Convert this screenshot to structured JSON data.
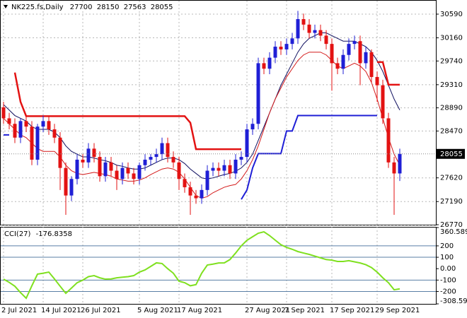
{
  "chart_data": [
    {
      "type": "candlestick",
      "title": "NK225.fs,Daily",
      "categories": [
        "2 Jul 2021",
        null,
        null,
        null,
        null,
        null,
        null,
        "14 Jul 2021",
        null,
        null,
        null,
        null,
        null,
        null,
        "26 Jul 2021",
        null,
        null,
        null,
        null,
        null,
        null,
        null,
        null,
        null,
        "5 Aug 2021",
        null,
        null,
        null,
        null,
        null,
        null,
        "17 Aug 2021",
        null,
        null,
        null,
        null,
        null,
        null,
        null,
        null,
        null,
        null,
        null,
        "27 Aug 2021",
        null,
        null,
        null,
        null,
        null,
        null,
        "7 Sep 2021",
        null,
        null,
        null,
        null,
        null,
        null,
        null,
        "17 Sep 2021",
        null,
        null,
        null,
        null,
        null,
        null,
        null,
        "29 Sep 2021",
        null,
        null,
        null,
        null
      ],
      "open": [
        28900,
        28700,
        28600,
        28350,
        28650,
        28550,
        27950,
        28550,
        28650,
        28500,
        28350,
        27800,
        27300,
        27600,
        27950,
        27900,
        28150,
        28000,
        27650,
        27900,
        27750,
        27600,
        27800,
        27700,
        27600,
        27850,
        27950,
        28000,
        28050,
        28250,
        28000,
        27900,
        27600,
        27450,
        27300,
        27250,
        27400,
        27750,
        27800,
        27750,
        27850,
        27700,
        27950,
        28000,
        28500,
        28600,
        29700,
        29600,
        29800,
        30000,
        29950,
        30050,
        30150,
        30500,
        30400,
        30250,
        30300,
        30200,
        30050,
        29700,
        29600,
        29850,
        30050,
        30100,
        29700,
        29900,
        29450,
        29300,
        28700,
        27900,
        27700
      ],
      "high": [
        29000,
        28800,
        28700,
        28700,
        28750,
        28650,
        28600,
        28750,
        28750,
        28600,
        28450,
        27900,
        27650,
        28050,
        28050,
        28250,
        28250,
        28100,
        28000,
        28000,
        27850,
        27900,
        27900,
        27800,
        27900,
        28050,
        28050,
        28150,
        28350,
        28350,
        28100,
        28000,
        27700,
        27550,
        27400,
        27500,
        27850,
        27900,
        27900,
        27950,
        27950,
        28050,
        28100,
        28600,
        28700,
        29800,
        29800,
        29900,
        30100,
        30100,
        30150,
        30250,
        30650,
        30600,
        30500,
        30400,
        30400,
        30300,
        30150,
        29800,
        29950,
        30150,
        30200,
        30200,
        30000,
        29950,
        29550,
        29400,
        28800,
        28000,
        28150
      ],
      "low": [
        28600,
        28500,
        28250,
        28250,
        28450,
        27850,
        27850,
        28450,
        28400,
        28250,
        27400,
        26950,
        27200,
        27500,
        27800,
        27800,
        27900,
        27550,
        27550,
        27650,
        27400,
        27500,
        27600,
        27500,
        27500,
        27750,
        27850,
        27900,
        27950,
        27900,
        27800,
        27400,
        27350,
        26950,
        27150,
        27150,
        27300,
        27650,
        27650,
        27650,
        27600,
        27600,
        27850,
        27900,
        28400,
        28500,
        29500,
        29500,
        29700,
        29850,
        29850,
        29950,
        30050,
        30300,
        30150,
        30150,
        30100,
        29950,
        29200,
        29500,
        29500,
        29750,
        29950,
        29300,
        29600,
        29350,
        29000,
        28600,
        27800,
        26950,
        27563
      ],
      "close": [
        28700,
        28600,
        28350,
        28650,
        28550,
        27950,
        28550,
        28650,
        28500,
        28350,
        27800,
        27300,
        27600,
        27950,
        27900,
        28150,
        28000,
        27650,
        27900,
        27750,
        27600,
        27800,
        27700,
        27600,
        27850,
        27950,
        28000,
        28050,
        28250,
        28000,
        27900,
        27600,
        27450,
        27300,
        27250,
        27400,
        27750,
        27800,
        27750,
        27850,
        27700,
        27950,
        28000,
        28500,
        28600,
        29700,
        29600,
        29800,
        30000,
        29950,
        30050,
        30150,
        30500,
        30400,
        30250,
        30300,
        30200,
        30050,
        29700,
        29600,
        29850,
        30050,
        30100,
        29700,
        29900,
        29450,
        29300,
        28700,
        27900,
        27700,
        28055
      ],
      "up_color": "#1f1fd6",
      "down_color": "#e31212",
      "overlays": [
        {
          "color": "#101060",
          "width": 1,
          "values": [
            28950,
            28850,
            28750,
            28700,
            28650,
            28550,
            28500,
            28500,
            28500,
            28450,
            28350,
            28200,
            28100,
            28050,
            28000,
            28000,
            27980,
            27950,
            27930,
            27900,
            27850,
            27830,
            27800,
            27780,
            27780,
            27800,
            27850,
            27900,
            27950,
            27980,
            27980,
            27950,
            27880,
            27780,
            27700,
            27620,
            27600,
            27620,
            27650,
            27680,
            27700,
            27740,
            27800,
            27900,
            28050,
            28300,
            28550,
            28800,
            29050,
            29300,
            29500,
            29700,
            29900,
            30050,
            30150,
            30200,
            30250,
            30250,
            30200,
            30150,
            30100,
            30100,
            30100,
            30050,
            30000,
            29900,
            29750,
            29550,
            29300,
            29050,
            28850
          ]
        },
        {
          "color": "#d41a1a",
          "width": 1,
          "values": [
            28700,
            28600,
            28500,
            28400,
            28350,
            28250,
            28150,
            28100,
            28100,
            28100,
            28000,
            27850,
            27750,
            27700,
            27680,
            27700,
            27720,
            27700,
            27680,
            27650,
            27600,
            27580,
            27560,
            27560,
            27580,
            27620,
            27680,
            27730,
            27780,
            27800,
            27780,
            27720,
            27600,
            27450,
            27300,
            27250,
            27280,
            27350,
            27400,
            27450,
            27480,
            27500,
            27600,
            27750,
            27950,
            28200,
            28500,
            28800,
            29050,
            29250,
            29450,
            29600,
            29750,
            29850,
            29900,
            29900,
            29900,
            29850,
            29750,
            29650,
            29600,
            29650,
            29700,
            29650,
            29550,
            29350,
            29050,
            28700,
            28350,
            28050,
            27850
          ]
        },
        {
          "color": "#e31212",
          "width": 2.5,
          "values": [
            null,
            null,
            29530,
            29000,
            28740,
            28740,
            28740,
            28740,
            28740,
            28740,
            28740,
            28740,
            28740,
            28740,
            28740,
            28740,
            28740,
            28740,
            28740,
            28740,
            28740,
            28740,
            28740,
            28740,
            28740,
            28740,
            28740,
            28740,
            28740,
            28740,
            28740,
            28740,
            28740,
            28620,
            28140,
            28140,
            28140,
            28140,
            28140,
            28140,
            28140,
            28140,
            28140,
            null,
            null,
            null,
            null,
            null,
            null,
            null,
            null,
            null,
            null,
            null,
            null,
            null,
            null,
            null,
            null,
            null,
            null,
            null,
            null,
            null,
            null,
            null,
            29720,
            29720,
            29310,
            29310,
            29310
          ]
        },
        {
          "color": "#1f1fd6",
          "width": 2,
          "values": [
            28400,
            28400,
            null,
            null,
            null,
            null,
            null,
            null,
            null,
            null,
            null,
            null,
            null,
            null,
            null,
            null,
            null,
            null,
            null,
            null,
            null,
            null,
            null,
            null,
            null,
            null,
            null,
            null,
            null,
            null,
            null,
            null,
            null,
            null,
            null,
            null,
            null,
            null,
            null,
            null,
            null,
            null,
            27230,
            27400,
            27800,
            28060,
            28060,
            28060,
            28060,
            28060,
            28470,
            28470,
            28750,
            28750,
            28750,
            28750,
            28750,
            28750,
            28750,
            28750,
            28750,
            28750,
            28750,
            28750,
            28750,
            28750,
            28750,
            null,
            null,
            null,
            null
          ]
        }
      ],
      "ylim": [
        26770,
        30820
      ],
      "yticks": [
        30590,
        30160,
        29740,
        29310,
        28890,
        28470,
        27620,
        27190,
        26770
      ],
      "grid": true
    },
    {
      "type": "line",
      "name": "CCI(27)",
      "color": "#7fe01f",
      "values": [
        -92,
        -120,
        -154,
        -210,
        -259,
        -150,
        -48,
        -40,
        -30,
        -90,
        -154,
        -216,
        -170,
        -123,
        -100,
        -70,
        -61,
        -80,
        -92,
        -90,
        -80,
        -75,
        -70,
        -61,
        -30,
        -11,
        20,
        51,
        45,
        0,
        -40,
        -110,
        -123,
        -150,
        -140,
        -40,
        32,
        40,
        50,
        51,
        80,
        137,
        200,
        249,
        280,
        311,
        323,
        290,
        250,
        210,
        187,
        170,
        150,
        137,
        125,
        110,
        95,
        80,
        75,
        63,
        63,
        70,
        60,
        50,
        35,
        10,
        -30,
        -80,
        -123,
        -185,
        -176.8358
      ],
      "ylim": [
        -308.5934,
        360.5895
      ],
      "yticks": [
        360.5895,
        200,
        100,
        {
          "value": 0,
          "label": "0.00"
        },
        -100,
        -200,
        -308.5934
      ]
    }
  ]
}
